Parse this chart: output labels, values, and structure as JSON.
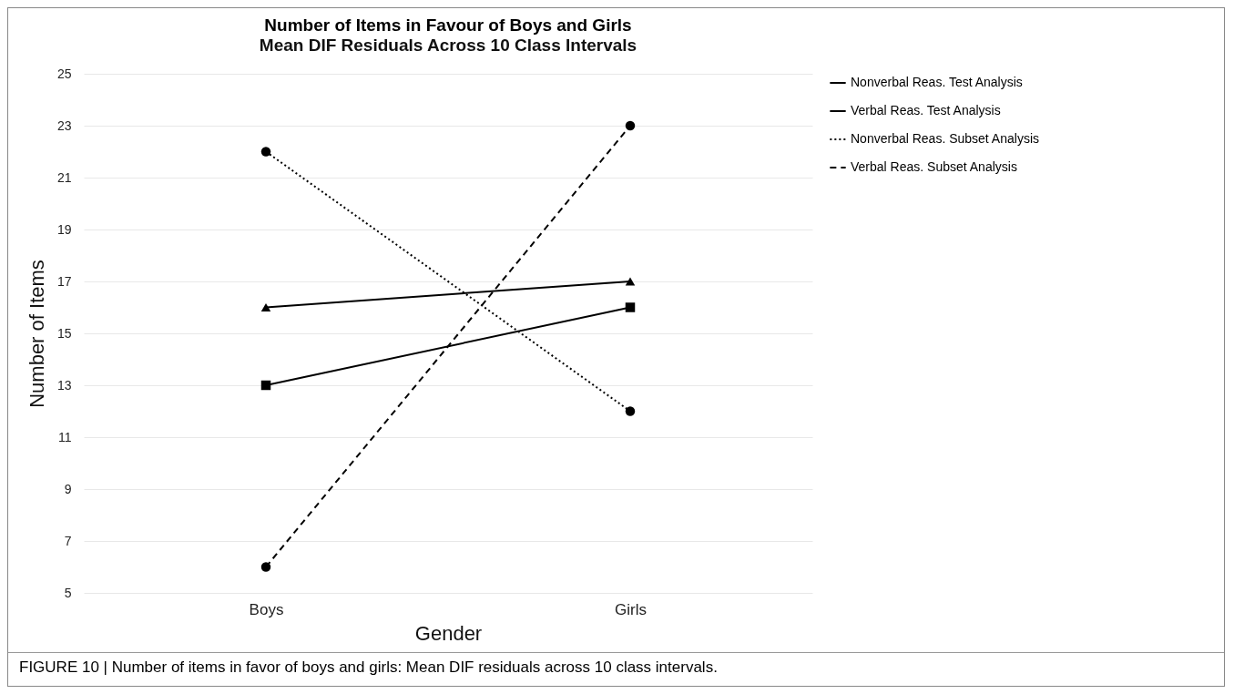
{
  "chart_data": {
    "type": "line",
    "title": "Number of Items in Favour of Boys and Girls",
    "subtitle": "Mean DIF Residuals Across 10 Class Intervals",
    "xlabel": "Gender",
    "ylabel": "Number of Items",
    "categories": [
      "Boys",
      "Girls"
    ],
    "series": [
      {
        "name": "Nonverbal Reas. Test Analysis",
        "color": "#000000",
        "marker": "triangle",
        "line_style": "solid",
        "values": [
          16,
          17
        ]
      },
      {
        "name": "Verbal Reas. Test Analysis",
        "color": "#000000",
        "marker": "square",
        "line_style": "solid",
        "values": [
          13,
          16
        ]
      },
      {
        "name": "Nonverbal Reas. Subset Analysis",
        "color": "#000000",
        "marker": "circle",
        "line_style": "dotted",
        "values": [
          22,
          12
        ]
      },
      {
        "name": "Verbal Reas. Subset Analysis",
        "color": "#000000",
        "marker": "circle",
        "line_style": "dashed",
        "values": [
          6,
          23
        ]
      }
    ],
    "ylim": [
      5,
      25
    ],
    "yticks": [
      5,
      7,
      9,
      11,
      13,
      15,
      17,
      19,
      21,
      23,
      25
    ],
    "grid": "y",
    "legend": "right",
    "annotations": [
      "FIGURE 10 | Number of items in favor of boys and girls: Mean DIF residuals across 10 class intervals."
    ]
  }
}
